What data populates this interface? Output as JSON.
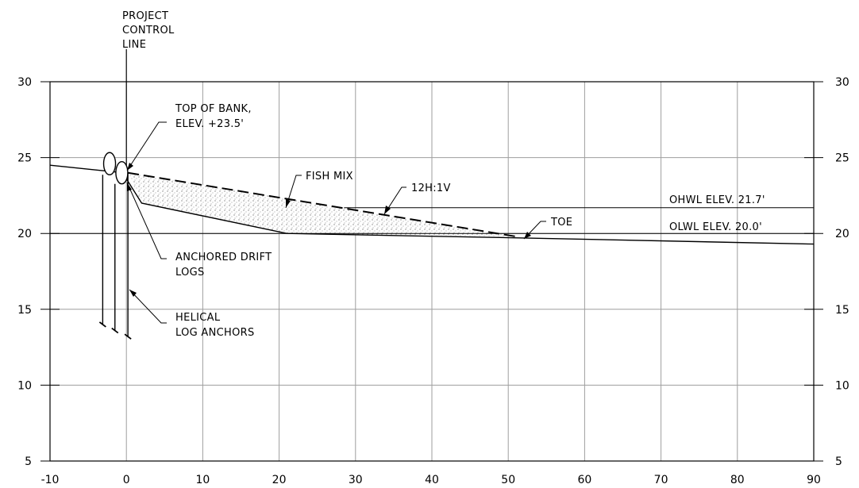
{
  "colors": {
    "ink": "#000000",
    "grid": "#9e9e9e",
    "background": "#ffffff"
  },
  "axes": {
    "x_ticks": [
      "-10",
      "0",
      "10",
      "20",
      "30",
      "40",
      "50",
      "60",
      "70",
      "80",
      "90"
    ],
    "y_ticks_left": [
      "5",
      "10",
      "15",
      "20",
      "25",
      "30"
    ],
    "y_ticks_right": [
      "5",
      "10",
      "15",
      "20",
      "25",
      "30"
    ],
    "x_range": [
      -10,
      90
    ],
    "y_range": [
      5,
      30
    ],
    "grid": true
  },
  "labels": {
    "project_control_line": [
      "PROJECT",
      "CONTROL",
      "LINE"
    ],
    "top_of_bank": [
      "TOP OF BANK,",
      "ELEV. +23.5'"
    ],
    "fish_mix": "FISH MIX",
    "slope": "12H:1V",
    "toe": "TOE",
    "ohwl": "OHWL ELEV. 21.7'",
    "olwl": "OLWL ELEV. 20.0'",
    "anchored_drift_logs": [
      "ANCHORED DRIFT",
      "LOGS"
    ],
    "helical_log_anchors": [
      "HELICAL",
      "LOG ANCHORS"
    ]
  },
  "profile": {
    "ground_line": [
      [
        -10,
        24.5
      ],
      [
        -0.5,
        24.0
      ],
      [
        2,
        22.0
      ],
      [
        21,
        20.0
      ],
      [
        52,
        19.7
      ],
      [
        90,
        19.3
      ]
    ],
    "fill_top_line": [
      [
        0.2,
        24.0
      ],
      [
        51,
        19.8
      ]
    ],
    "ohwl_elevation": 21.7,
    "olwl_elevation": 20.0,
    "project_control_line_x": 0,
    "drift_logs_centers": [
      [
        -2.2,
        24.6
      ],
      [
        -0.6,
        24.0
      ]
    ],
    "anchor_posts": [
      [
        -3.1,
        14.0
      ],
      [
        -1.5,
        13.6
      ],
      [
        0.2,
        13.2
      ]
    ]
  }
}
